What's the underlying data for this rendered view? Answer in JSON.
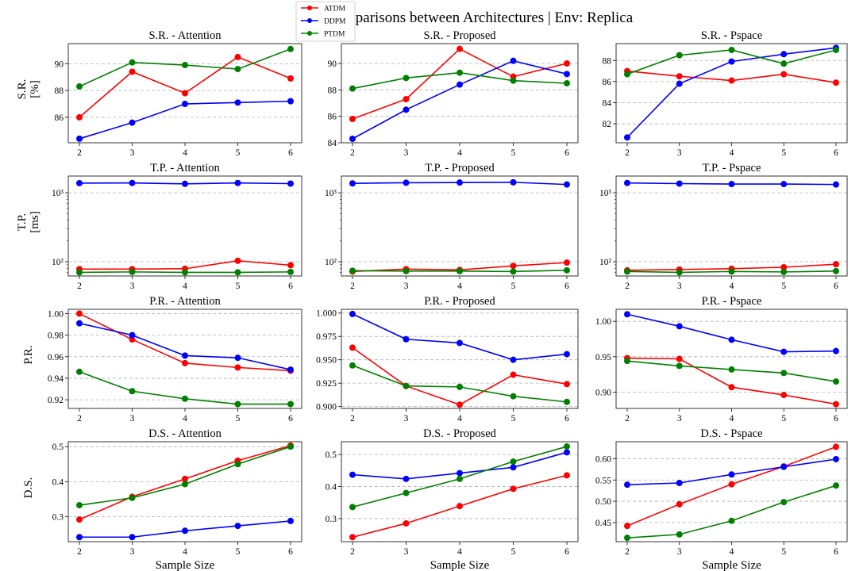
{
  "chart_data": {
    "type": "line",
    "title": "Comparisons between Architectures | Env: Replica",
    "legend": {
      "placement": "top-center",
      "entries": [
        {
          "name": "ATDM",
          "color": "#ff0000"
        },
        {
          "name": "DDPM",
          "color": "#0000ff"
        },
        {
          "name": "PTDM",
          "color": "#008000"
        }
      ]
    },
    "x": [
      2,
      3,
      4,
      5,
      6
    ],
    "x_tick_labels": [
      "2",
      "3",
      "4",
      "5",
      "6"
    ],
    "xlabel": "Sample Size",
    "grid": "horizontal dashed",
    "rows": [
      {
        "metric": "S.R.",
        "ylabel_lines": [
          "S.R.",
          "[%]"
        ],
        "scale": "linear",
        "panels": [
          {
            "title": "S.R. - Attention",
            "ylim": [
              84.1,
              91.5
            ],
            "yticks": [
              86,
              88,
              90
            ],
            "ytick_labels": [
              "86",
              "88",
              "90"
            ],
            "series": [
              {
                "name": "ATDM",
                "values": [
                  86.0,
                  89.4,
                  87.8,
                  90.5,
                  88.9
                ]
              },
              {
                "name": "DDPM",
                "values": [
                  84.4,
                  85.6,
                  87.0,
                  87.1,
                  87.2
                ]
              },
              {
                "name": "PTDM",
                "values": [
                  88.3,
                  90.1,
                  89.9,
                  89.6,
                  91.1
                ]
              }
            ]
          },
          {
            "title": "S.R. - Proposed",
            "ylim": [
              84.0,
              91.5
            ],
            "yticks": [
              84,
              86,
              88,
              90
            ],
            "ytick_labels": [
              "84",
              "86",
              "88",
              "90"
            ],
            "series": [
              {
                "name": "ATDM",
                "values": [
                  85.8,
                  87.3,
                  91.1,
                  89.0,
                  90.0
                ]
              },
              {
                "name": "DDPM",
                "values": [
                  84.3,
                  86.5,
                  88.4,
                  90.2,
                  89.2
                ]
              },
              {
                "name": "PTDM",
                "values": [
                  88.1,
                  88.9,
                  89.3,
                  88.7,
                  88.5
                ]
              }
            ]
          },
          {
            "title": "S.R. - Pspace",
            "ylim": [
              80.2,
              89.6
            ],
            "yticks": [
              82,
              84,
              86,
              88
            ],
            "ytick_labels": [
              "82",
              "84",
              "86",
              "88"
            ],
            "series": [
              {
                "name": "ATDM",
                "values": [
                  87.0,
                  86.5,
                  86.1,
                  86.7,
                  85.9
                ]
              },
              {
                "name": "DDPM",
                "values": [
                  80.7,
                  85.8,
                  87.9,
                  88.6,
                  89.2
                ]
              },
              {
                "name": "PTDM",
                "values": [
                  86.7,
                  88.5,
                  89.0,
                  87.7,
                  89.0
                ]
              }
            ]
          }
        ]
      },
      {
        "metric": "T.P.",
        "ylabel_lines": [
          "T.P.",
          "[ms]"
        ],
        "scale": "log",
        "panels": [
          {
            "title": "T.P. - Attention",
            "ylim": [
              62,
              1750
            ],
            "yticks": [
              100,
              1000
            ],
            "ytick_labels": [
              "10²",
              "10³"
            ],
            "series": [
              {
                "name": "ATDM",
                "values": [
                  78,
                  78,
                  79,
                  103,
                  89
                ]
              },
              {
                "name": "DDPM",
                "values": [
                  1380,
                  1390,
                  1350,
                  1390,
                  1360
                ]
              },
              {
                "name": "PTDM",
                "values": [
                  70,
                  71,
                  70,
                  70,
                  71
                ]
              }
            ]
          },
          {
            "title": "T.P. - Proposed",
            "ylim": [
              62,
              1750
            ],
            "yticks": [
              100,
              1000
            ],
            "ytick_labels": [
              "10²",
              "10³"
            ],
            "series": [
              {
                "name": "ATDM",
                "values": [
                  72,
                  78,
                  76,
                  87,
                  97
                ]
              },
              {
                "name": "DDPM",
                "values": [
                  1370,
                  1400,
                  1410,
                  1420,
                  1320
                ]
              },
              {
                "name": "PTDM",
                "values": [
                  74,
                  73,
                  73,
                  72,
                  75
                ]
              }
            ]
          },
          {
            "title": "T.P. - Pspace",
            "ylim": [
              62,
              1750
            ],
            "yticks": [
              100,
              1000
            ],
            "ytick_labels": [
              "10²",
              "10³"
            ],
            "series": [
              {
                "name": "ATDM",
                "values": [
                  75,
                  77,
                  79,
                  83,
                  92
                ]
              },
              {
                "name": "DDPM",
                "values": [
                  1390,
                  1360,
                  1340,
                  1340,
                  1320
                ]
              },
              {
                "name": "PTDM",
                "values": [
                  72,
                  70,
                  72,
                  71,
                  73
                ]
              }
            ]
          }
        ]
      },
      {
        "metric": "P.R.",
        "ylabel_lines": [
          "P.R."
        ],
        "scale": "linear",
        "panels": [
          {
            "title": "P.R. - Attention",
            "ylim": [
              0.912,
              1.004
            ],
            "yticks": [
              0.92,
              0.94,
              0.96,
              0.98,
              1.0
            ],
            "ytick_labels": [
              "0.92",
              "0.94",
              "0.96",
              "0.98",
              "1.00"
            ],
            "series": [
              {
                "name": "ATDM",
                "values": [
                  1.0,
                  0.976,
                  0.954,
                  0.95,
                  0.947
                ]
              },
              {
                "name": "DDPM",
                "values": [
                  0.991,
                  0.98,
                  0.961,
                  0.959,
                  0.948
                ]
              },
              {
                "name": "PTDM",
                "values": [
                  0.946,
                  0.928,
                  0.921,
                  0.916,
                  0.916
                ]
              }
            ]
          },
          {
            "title": "P.R. - Proposed",
            "ylim": [
              0.898,
              1.004
            ],
            "yticks": [
              0.9,
              0.925,
              0.95,
              0.975,
              1.0
            ],
            "ytick_labels": [
              "0.900",
              "0.925",
              "0.950",
              "0.975",
              "1.000"
            ],
            "series": [
              {
                "name": "ATDM",
                "values": [
                  0.963,
                  0.922,
                  0.902,
                  0.934,
                  0.924
                ]
              },
              {
                "name": "DDPM",
                "values": [
                  0.999,
                  0.972,
                  0.968,
                  0.95,
                  0.956
                ]
              },
              {
                "name": "PTDM",
                "values": [
                  0.944,
                  0.922,
                  0.921,
                  0.911,
                  0.905
                ]
              }
            ]
          },
          {
            "title": "P.R. - Pspace",
            "ylim": [
              0.877,
              1.017
            ],
            "yticks": [
              0.9,
              0.95,
              1.0
            ],
            "ytick_labels": [
              "0.90",
              "0.95",
              "1.00"
            ],
            "series": [
              {
                "name": "ATDM",
                "values": [
                  0.948,
                  0.947,
                  0.907,
                  0.896,
                  0.883
                ]
              },
              {
                "name": "DDPM",
                "values": [
                  1.01,
                  0.993,
                  0.974,
                  0.957,
                  0.958
                ]
              },
              {
                "name": "PTDM",
                "values": [
                  0.944,
                  0.937,
                  0.932,
                  0.927,
                  0.915
                ]
              }
            ]
          }
        ]
      },
      {
        "metric": "D.S.",
        "ylabel_lines": [
          "D.S."
        ],
        "scale": "linear",
        "panels": [
          {
            "title": "D.S. - Attention",
            "ylim": [
              0.229,
              0.514
            ],
            "yticks": [
              0.3,
              0.4,
              0.5
            ],
            "ytick_labels": [
              "0.3",
              "0.4",
              "0.5"
            ],
            "series": [
              {
                "name": "ATDM",
                "values": [
                  0.292,
                  0.357,
                  0.408,
                  0.46,
                  0.503
                ]
              },
              {
                "name": "DDPM",
                "values": [
                  0.242,
                  0.242,
                  0.26,
                  0.274,
                  0.288
                ]
              },
              {
                "name": "PTDM",
                "values": [
                  0.333,
                  0.354,
                  0.393,
                  0.45,
                  0.5
                ]
              }
            ]
          },
          {
            "title": "D.S. - Proposed",
            "ylim": [
              0.228,
              0.54
            ],
            "yticks": [
              0.3,
              0.4,
              0.5
            ],
            "ytick_labels": [
              "0.3",
              "0.4",
              "0.5"
            ],
            "series": [
              {
                "name": "ATDM",
                "values": [
                  0.242,
                  0.285,
                  0.339,
                  0.393,
                  0.435
                ]
              },
              {
                "name": "DDPM",
                "values": [
                  0.437,
                  0.424,
                  0.442,
                  0.46,
                  0.507
                ]
              },
              {
                "name": "PTDM",
                "values": [
                  0.336,
                  0.38,
                  0.424,
                  0.478,
                  0.525
                ]
              }
            ]
          },
          {
            "title": "D.S. - Pspace",
            "ylim": [
              0.405,
              0.64
            ],
            "yticks": [
              0.45,
              0.5,
              0.55,
              0.6
            ],
            "ytick_labels": [
              "0.45",
              "0.50",
              "0.55",
              "0.60"
            ],
            "series": [
              {
                "name": "ATDM",
                "values": [
                  0.442,
                  0.493,
                  0.54,
                  0.582,
                  0.628
                ]
              },
              {
                "name": "DDPM",
                "values": [
                  0.539,
                  0.543,
                  0.563,
                  0.581,
                  0.599
                ]
              },
              {
                "name": "PTDM",
                "values": [
                  0.414,
                  0.422,
                  0.454,
                  0.498,
                  0.537
                ]
              }
            ]
          }
        ]
      }
    ]
  }
}
